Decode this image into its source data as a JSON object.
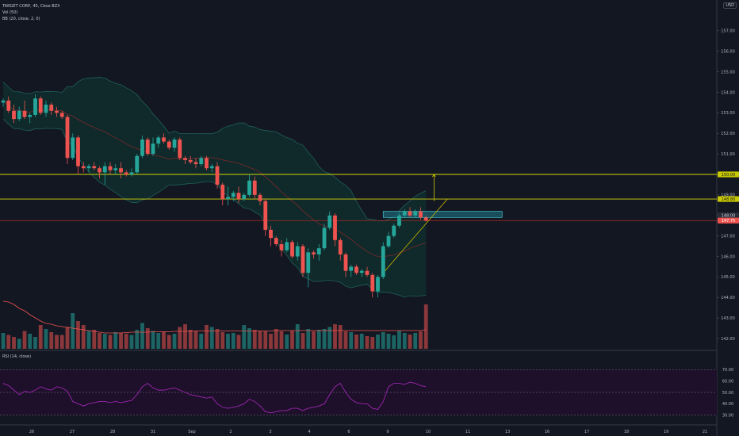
{
  "header": {
    "symbol_line": "TARGET CORP, 45, Cboe BZX",
    "indicator_1": "Vol (50)",
    "indicator_2": "BB (20, close, 2, 0)",
    "currency": "USD"
  },
  "rsi_panel": {
    "label": "RSI (14, close)"
  },
  "colors": {
    "background": "#131722",
    "up": "#26a69a",
    "down": "#ef5350",
    "bollinger_fill": "#10302e",
    "bollinger_band": "#1f5f5a",
    "basis": "#7a2a2a",
    "horizontal_line": "#d4d40a",
    "ray_line": "#b02a2a",
    "rsi_fill": "#1e0f2a",
    "rsi_line": "#9c27b0",
    "zone": "#1b5e6a",
    "zone_border": "#4dd0e1",
    "arrow": "#c8c800"
  },
  "chart_data": {
    "type": "candlestick",
    "title": "TARGET CORP, 45, Cboe BZX",
    "price_axis": {
      "ylim": [
        141.5,
        158.5
      ],
      "ticks": [
        "157.00",
        "156.00",
        "155.00",
        "154.00",
        "153.00",
        "152.00",
        "151.00",
        "150.00",
        "149.00",
        "148.00",
        "147.00",
        "146.00",
        "145.00",
        "144.00",
        "143.00",
        "142.00"
      ]
    },
    "x_axis": {
      "ticks": [
        "26",
        "27",
        "28",
        "31",
        "Sep",
        "2",
        "3",
        "4",
        "6",
        "9",
        "10",
        "11",
        "13",
        "16",
        "17",
        "18",
        "19",
        "21"
      ]
    },
    "price_labels": [
      {
        "value": 150.0,
        "text": "150.00",
        "style": "yellow"
      },
      {
        "value": 148.8,
        "text": "148.80",
        "style": "yellow"
      },
      {
        "value": 148.0,
        "text": "148.00",
        "style": "plain"
      },
      {
        "value": 147.75,
        "text": "147.75",
        "style": "red"
      }
    ],
    "horizontal_lines": [
      150.0,
      148.8
    ],
    "ray_level": 147.75,
    "zone": {
      "from_bar": 71,
      "to_bar": 91,
      "top": 148.2,
      "bottom": 147.9
    },
    "candles": [
      [
        153.5,
        153.7,
        153.3,
        153.6
      ],
      [
        153.6,
        153.8,
        153.0,
        153.1
      ],
      [
        153.1,
        153.4,
        152.5,
        152.7
      ],
      [
        152.7,
        153.3,
        152.6,
        153.1
      ],
      [
        153.1,
        153.6,
        152.7,
        152.8
      ],
      [
        152.8,
        153.0,
        152.5,
        152.9
      ],
      [
        152.9,
        153.9,
        152.8,
        153.7
      ],
      [
        153.7,
        153.8,
        152.9,
        153.0
      ],
      [
        153.0,
        153.6,
        152.8,
        153.4
      ],
      [
        153.4,
        153.5,
        152.9,
        153.1
      ],
      [
        153.1,
        153.3,
        152.8,
        153.0
      ],
      [
        153.0,
        153.1,
        152.7,
        152.8
      ],
      [
        152.8,
        152.9,
        150.5,
        150.8
      ],
      [
        150.8,
        152.0,
        150.7,
        151.8
      ],
      [
        151.8,
        151.9,
        150.0,
        150.4
      ],
      [
        150.4,
        150.6,
        150.1,
        150.3
      ],
      [
        150.3,
        150.5,
        150.1,
        150.4
      ],
      [
        150.4,
        150.6,
        150.2,
        150.3
      ],
      [
        150.3,
        150.4,
        149.8,
        150.1
      ],
      [
        150.1,
        150.6,
        149.5,
        150.4
      ],
      [
        150.4,
        150.6,
        150.0,
        150.2
      ],
      [
        150.2,
        150.5,
        150.0,
        150.3
      ],
      [
        150.3,
        150.6,
        149.8,
        150.1
      ],
      [
        150.1,
        150.2,
        149.9,
        150.0
      ],
      [
        150.0,
        150.3,
        149.9,
        150.1
      ],
      [
        150.1,
        151.0,
        150.0,
        150.9
      ],
      [
        150.9,
        151.9,
        150.8,
        151.7
      ],
      [
        151.7,
        151.8,
        150.9,
        151.0
      ],
      [
        151.0,
        151.8,
        150.9,
        151.5
      ],
      [
        151.5,
        151.9,
        151.3,
        151.8
      ],
      [
        151.8,
        152.0,
        151.5,
        151.6
      ],
      [
        151.6,
        151.7,
        151.2,
        151.3
      ],
      [
        151.3,
        151.8,
        151.1,
        151.7
      ],
      [
        151.7,
        151.8,
        150.7,
        150.8
      ],
      [
        150.8,
        150.9,
        150.5,
        150.7
      ],
      [
        150.7,
        150.9,
        150.5,
        150.6
      ],
      [
        150.6,
        150.8,
        150.3,
        150.5
      ],
      [
        150.5,
        150.9,
        150.4,
        150.8
      ],
      [
        150.8,
        150.9,
        150.2,
        150.3
      ],
      [
        150.3,
        150.5,
        150.1,
        150.4
      ],
      [
        150.4,
        150.6,
        149.3,
        149.5
      ],
      [
        149.5,
        149.6,
        148.5,
        148.8
      ],
      [
        148.8,
        149.4,
        148.5,
        148.9
      ],
      [
        148.9,
        149.2,
        148.7,
        149.1
      ],
      [
        149.1,
        149.4,
        148.6,
        148.8
      ],
      [
        148.8,
        149.1,
        148.7,
        149.0
      ],
      [
        149.0,
        150.0,
        148.9,
        149.7
      ],
      [
        149.7,
        149.9,
        148.8,
        149.0
      ],
      [
        149.0,
        149.1,
        148.5,
        148.7
      ],
      [
        148.7,
        148.8,
        147.0,
        147.3
      ],
      [
        147.3,
        147.5,
        146.5,
        146.9
      ],
      [
        146.9,
        147.0,
        146.5,
        146.6
      ],
      [
        146.6,
        146.8,
        146.0,
        146.3
      ],
      [
        146.3,
        146.9,
        146.2,
        146.7
      ],
      [
        146.7,
        146.8,
        145.9,
        146.0
      ],
      [
        146.0,
        146.7,
        145.8,
        146.5
      ],
      [
        146.5,
        146.6,
        145.0,
        145.2
      ],
      [
        145.2,
        146.4,
        144.5,
        146.2
      ],
      [
        146.2,
        146.3,
        145.9,
        146.1
      ],
      [
        146.1,
        146.6,
        145.8,
        146.4
      ],
      [
        146.4,
        147.6,
        146.3,
        147.4
      ],
      [
        147.4,
        148.2,
        147.3,
        148.0
      ],
      [
        148.0,
        148.1,
        146.5,
        146.8
      ],
      [
        146.8,
        146.9,
        145.8,
        146.1
      ],
      [
        146.1,
        146.2,
        145.0,
        145.3
      ],
      [
        145.3,
        145.6,
        145.0,
        145.5
      ],
      [
        145.5,
        145.6,
        145.1,
        145.2
      ],
      [
        145.2,
        145.4,
        145.0,
        145.3
      ],
      [
        145.3,
        145.5,
        145.0,
        145.1
      ],
      [
        145.1,
        145.2,
        144.0,
        144.3
      ],
      [
        144.3,
        145.1,
        144.0,
        145.0
      ],
      [
        145.0,
        146.7,
        144.9,
        146.5
      ],
      [
        146.5,
        147.2,
        146.4,
        147.0
      ],
      [
        147.0,
        147.6,
        146.9,
        147.5
      ],
      [
        147.5,
        148.1,
        147.4,
        148.0
      ],
      [
        148.0,
        148.3,
        147.9,
        148.2
      ],
      [
        148.2,
        148.4,
        147.9,
        148.0
      ],
      [
        148.0,
        148.3,
        147.9,
        148.2
      ],
      [
        148.2,
        148.4,
        147.8,
        147.9
      ],
      [
        147.9,
        148.0,
        147.7,
        147.75
      ]
    ],
    "volume": [
      40,
      35,
      30,
      25,
      45,
      38,
      30,
      60,
      50,
      42,
      35,
      35,
      55,
      90,
      70,
      60,
      45,
      48,
      40,
      38,
      35,
      42,
      40,
      38,
      35,
      48,
      65,
      52,
      45,
      40,
      44,
      35,
      38,
      55,
      62,
      48,
      45,
      38,
      60,
      55,
      50,
      42,
      38,
      40,
      35,
      60,
      52,
      48,
      45,
      44,
      38,
      50,
      44,
      36,
      45,
      62,
      40,
      50,
      44,
      48,
      50,
      55,
      62,
      60,
      44,
      42,
      36,
      38,
      32,
      30,
      36,
      42,
      38,
      34,
      46,
      40,
      36,
      40,
      44,
      112
    ],
    "volume_ma": [
      120,
      118,
      112,
      102,
      96,
      86,
      78,
      70,
      64,
      62,
      58,
      56,
      54,
      52,
      50,
      48,
      46,
      44,
      42,
      40,
      40,
      40,
      40,
      41,
      42,
      42,
      42,
      42,
      43,
      43,
      43,
      43,
      44,
      44,
      44,
      44,
      45,
      45,
      45,
      45,
      45,
      45,
      45,
      45,
      45,
      45,
      45,
      45,
      45,
      45,
      45,
      46,
      46,
      46,
      46,
      46,
      46,
      46,
      46,
      46,
      46,
      46,
      46,
      46,
      46,
      46,
      46,
      46,
      46,
      46,
      46,
      46,
      46,
      46,
      46,
      46,
      46,
      46,
      46,
      48
    ],
    "rsi_axis": {
      "ylim": [
        20,
        80
      ],
      "ticks": [
        "70.00",
        "60.00",
        "50.00",
        "40.00",
        "30.00"
      ],
      "upper": 70,
      "lower": 30
    },
    "rsi": [
      58,
      56,
      52,
      48,
      51,
      50,
      52,
      55,
      53,
      52,
      55,
      54,
      51,
      42,
      40,
      38,
      40,
      41,
      42,
      42,
      41,
      42,
      41,
      42,
      43,
      48,
      55,
      58,
      54,
      52,
      52,
      53,
      54,
      52,
      50,
      48,
      47,
      46,
      45,
      46,
      40,
      37,
      36,
      37,
      38,
      40,
      44,
      42,
      38,
      33,
      32,
      33,
      34,
      34,
      36,
      36,
      34,
      36,
      37,
      38,
      40,
      48,
      55,
      58,
      50,
      44,
      41,
      40,
      40,
      36,
      35,
      42,
      55,
      58,
      58,
      57,
      59,
      58,
      56,
      55
    ]
  }
}
